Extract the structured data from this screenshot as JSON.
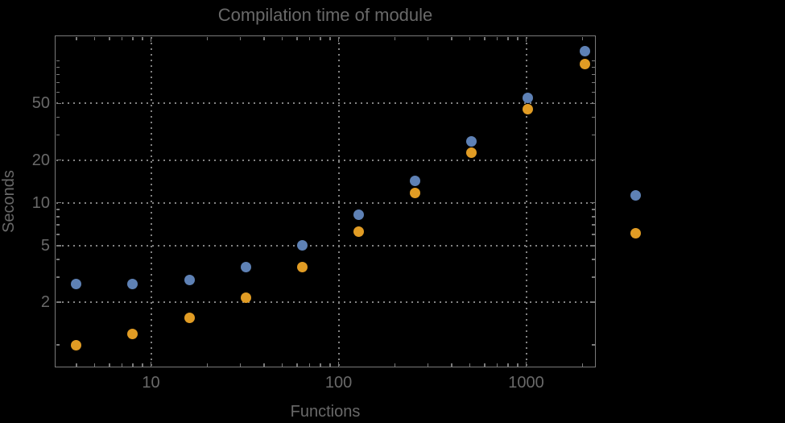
{
  "colors": {
    "background": "#000000",
    "label_text": "#696969",
    "frame_and_ticks": "#7a7a7a",
    "gridlines": "#828282",
    "series_blue": "#5e81b5",
    "series_orange": "#e19c24"
  },
  "chart_data": {
    "type": "scatter",
    "title": "Compilation time of module",
    "xlabel": "Functions",
    "ylabel": "Seconds",
    "x_scale": "log",
    "y_scale": "log",
    "xlim": [
      3.07,
      2350
    ],
    "ylim": [
      0.695,
      150.5
    ],
    "x_ticks": [
      10,
      100,
      1000
    ],
    "y_ticks": [
      2,
      5,
      10,
      20,
      50
    ],
    "grid": "dotted gridlines at labeled major ticks, minor ticks unlabeled on all four frame edges",
    "marker_diameter_px": 13,
    "x": [
      4,
      8,
      16,
      32,
      64,
      128,
      256,
      512,
      1024,
      2048
    ],
    "series": [
      {
        "name": "blue",
        "color": "#5e81b5",
        "values": [
          2.7,
          2.7,
          2.85,
          3.55,
          5.0,
          8.2,
          14.3,
          26.9,
          54.5,
          116
        ]
      },
      {
        "name": "orange",
        "color": "#e19c24",
        "values": [
          1.0,
          1.2,
          1.55,
          2.15,
          3.55,
          6.3,
          11.8,
          22.4,
          45.8,
          95
        ]
      }
    ],
    "legend": {
      "position": "right-of-plot",
      "entries": [
        {
          "marker_color": "#5e81b5",
          "label": ""
        },
        {
          "marker_color": "#e19c24",
          "label": ""
        }
      ]
    }
  }
}
